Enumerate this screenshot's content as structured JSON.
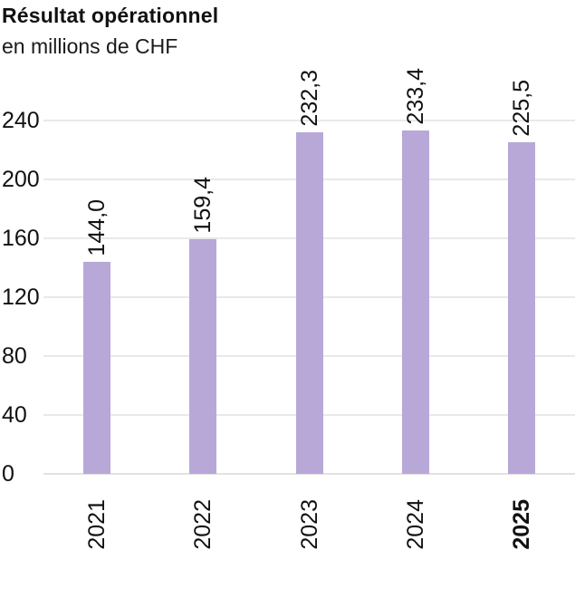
{
  "header": {
    "title": "Résultat opérationnel",
    "subtitle": "en millions de CHF"
  },
  "chart_data": {
    "type": "bar",
    "title": "Résultat opérationnel",
    "subtitle": "en millions de CHF",
    "categories": [
      "2021",
      "2022",
      "2023",
      "2024",
      "2025"
    ],
    "values": [
      144.0,
      159.4,
      232.3,
      233.4,
      225.5
    ],
    "value_labels": [
      "144,0",
      "159,4",
      "232,3",
      "233,4",
      "225,5"
    ],
    "bold_category": "2025",
    "xlabel": "",
    "ylabel": "en millions de CHF",
    "ylim": [
      0,
      240
    ],
    "yticks": [
      0,
      40,
      80,
      120,
      160,
      200,
      240
    ],
    "grid": true,
    "legend": false,
    "bar_color": "#b8a8d8",
    "gridline_color": "#e9e9e9",
    "baseline_color": "#e2e2e2",
    "text_color": "#111111"
  }
}
